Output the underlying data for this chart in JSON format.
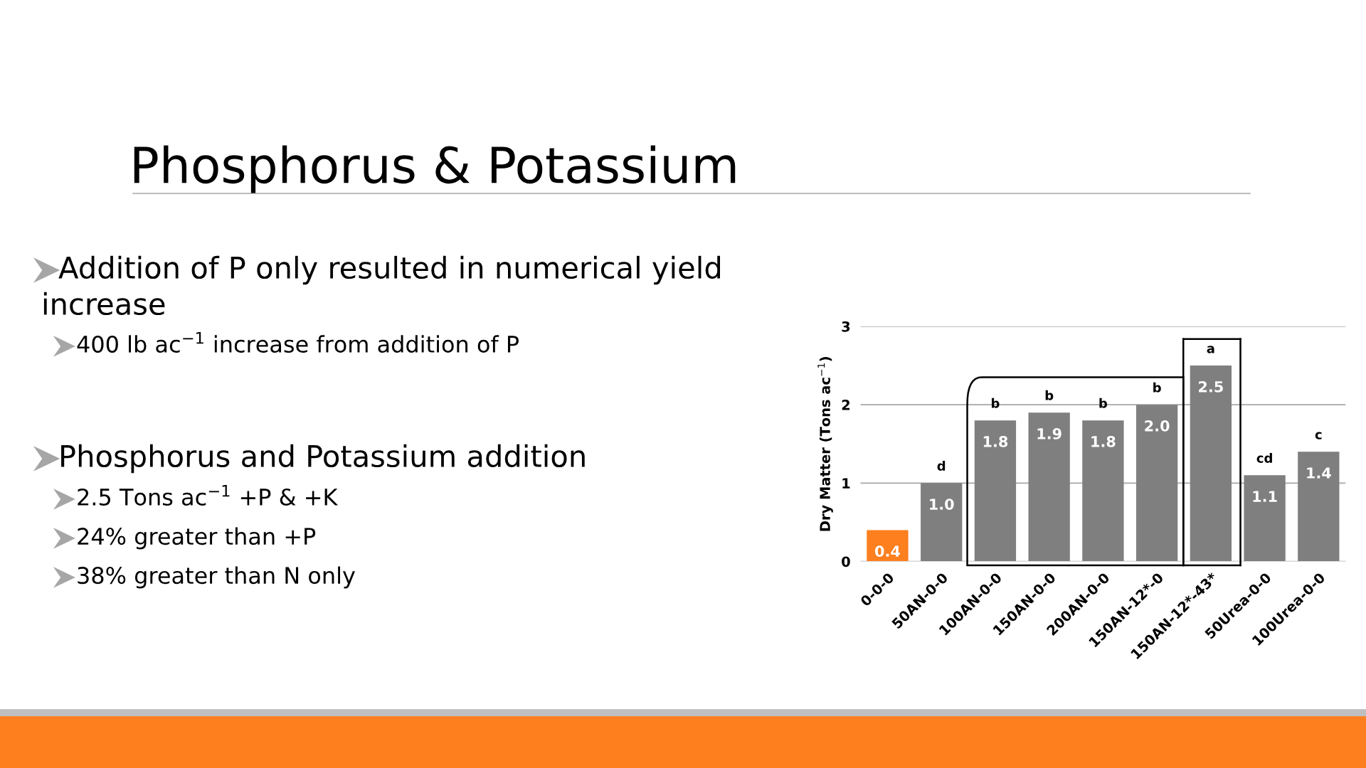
{
  "chart_data": {
    "type": "bar",
    "title": "Phosphorus & Potassium",
    "categories": [
      "0-0-0",
      "50AN-0-0",
      "100AN-0-0",
      "150AN-0-0",
      "200AN-0-0",
      "150AN-12*-0",
      "150AN-12*-43*",
      "50Urea-0-0",
      "100Urea-0-0"
    ],
    "values": [
      0.4,
      1.0,
      1.8,
      1.9,
      1.8,
      2.0,
      2.5,
      1.1,
      1.4
    ],
    "colors": [
      "#fd7f1e",
      "#7f7f7f",
      "#7f7f7f",
      "#7f7f7f",
      "#7f7f7f",
      "#7f7f7f",
      "#7f7f7f",
      "#7f7f7f",
      "#7f7f7f"
    ],
    "ylabel": "Dry Matter (Tons ac$^{−1}$)",
    "ylim": [
      0,
      3
    ],
    "yticks": [
      0,
      1,
      2,
      3
    ],
    "grid": "y",
    "value_labels": [
      "0.4",
      "1.0",
      "1.8",
      "1.9",
      "1.8",
      "2.0",
      "2.5",
      "1.1",
      "1.4"
    ],
    "annotations": [
      {
        "text": "d",
        "x": "50AN-0-0",
        "y": 1.0
      },
      {
        "text": "b",
        "x": "100AN-0-0",
        "y": 1.8
      },
      {
        "text": "b",
        "x": "150AN-0-0",
        "y": 1.9
      },
      {
        "text": "b",
        "x": "200AN-0-0",
        "y": 1.8
      },
      {
        "text": "b",
        "x": "150AN-12*-0",
        "y": 2.0
      },
      {
        "text": "a",
        "x": "150AN-12*-43*",
        "y": 2.5
      },
      {
        "text": "cd",
        "x": "50Urea-0-0",
        "y": 1.1
      },
      {
        "text": "c",
        "x": "100Urea-0-0",
        "y": 1.4
      },
      "Addition of P only resulted in numerical yield\nincrease",
      "400 lb ac$^{−1}$ increase from addition of P",
      "Phosphorus and Potassium addition",
      "2.5 Tons ac$^{−1}$ +P & +K",
      "24% greater than +P",
      "38% greater than N only"
    ]
  }
}
